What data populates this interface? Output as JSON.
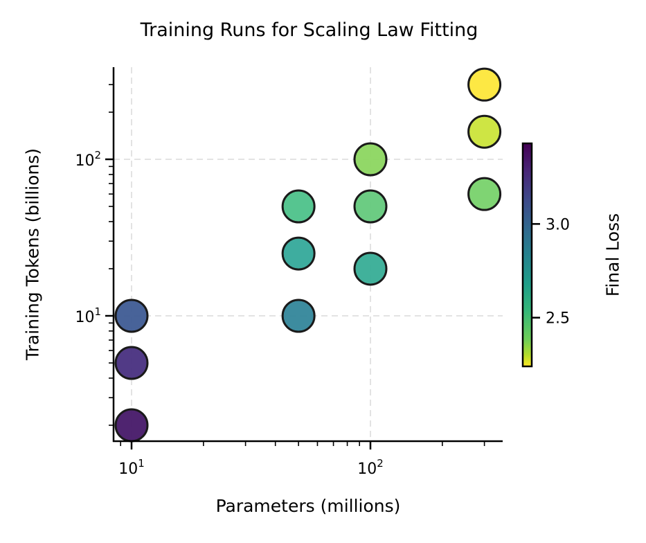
{
  "chart_data": {
    "type": "scatter",
    "title": "Training Runs for Scaling Law Fitting",
    "xlabel": "Parameters (millions)",
    "ylabel": "Training Tokens (billions)",
    "xscale": "log",
    "yscale": "log",
    "xlim": [
      8.4,
      340
    ],
    "ylim": [
      1.7,
      400
    ],
    "x_ticks": [
      {
        "value": 10,
        "label": "10",
        "exp": "1"
      },
      {
        "value": 100,
        "label": "10",
        "exp": "2"
      }
    ],
    "y_ticks": [
      {
        "value": 10,
        "label": "10",
        "exp": "1"
      },
      {
        "value": 100,
        "label": "10",
        "exp": "2"
      }
    ],
    "grid": true,
    "grid_style": "dashed",
    "colormap": "viridis_r",
    "colorbar": {
      "label": "Final Loss",
      "range": [
        2.24,
        3.43
      ],
      "ticks": [
        {
          "value": 3.0,
          "label": "3.0"
        },
        {
          "value": 2.5,
          "label": "2.5"
        }
      ]
    },
    "points": [
      {
        "params_m": 10,
        "tokens_b": 2,
        "loss": 3.4,
        "color": "#461868"
      },
      {
        "params_m": 10,
        "tokens_b": 5,
        "loss": 3.3,
        "color": "#482f7f"
      },
      {
        "params_m": 10,
        "tokens_b": 10,
        "loss": 3.18,
        "color": "#3e5b93"
      },
      {
        "params_m": 50,
        "tokens_b": 10,
        "loss": 2.98,
        "color": "#33869a"
      },
      {
        "params_m": 50,
        "tokens_b": 25,
        "loss": 2.78,
        "color": "#34a99a"
      },
      {
        "params_m": 50,
        "tokens_b": 50,
        "loss": 2.62,
        "color": "#4dc28a"
      },
      {
        "params_m": 100,
        "tokens_b": 20,
        "loss": 2.76,
        "color": "#37ad96"
      },
      {
        "params_m": 100,
        "tokens_b": 50,
        "loss": 2.58,
        "color": "#64c97c"
      },
      {
        "params_m": 100,
        "tokens_b": 100,
        "loss": 2.5,
        "color": "#8cd660"
      },
      {
        "params_m": 300,
        "tokens_b": 60,
        "loss": 2.52,
        "color": "#78d26c"
      },
      {
        "params_m": 300,
        "tokens_b": 150,
        "loss": 2.35,
        "color": "#cbe43a"
      },
      {
        "params_m": 300,
        "tokens_b": 300,
        "loss": 2.25,
        "color": "#fde73a"
      }
    ]
  },
  "colors": {
    "axis": "#000000",
    "grid": "#e3e3e3",
    "marker_edge": "#1a1a1a"
  }
}
